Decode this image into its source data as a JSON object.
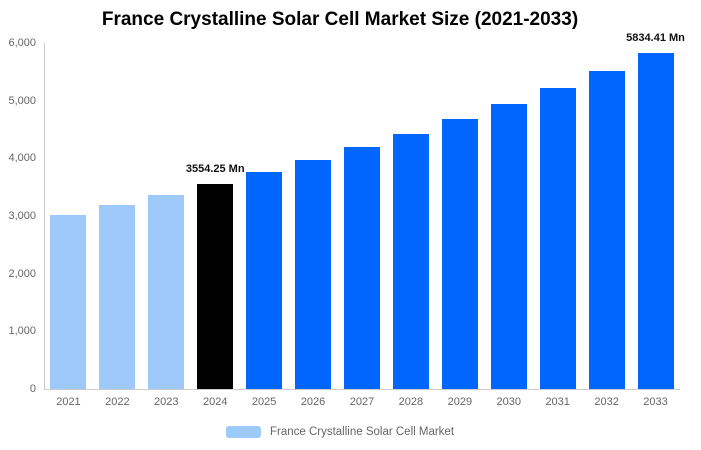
{
  "title": "France Crystalline Solar Cell Market Size (2021-2033)",
  "legend": {
    "label": "France Crystalline Solar Cell Market",
    "swatch_color": "#9ECAFB"
  },
  "colors": {
    "light_blue": "#9ECAFB",
    "highlight_black": "#000000",
    "primary_blue": "#0166FE",
    "axis_line": "#cccccc",
    "tick_text": "#666666",
    "data_label_text": "#111111",
    "title_text": "#000000",
    "background": "#ffffff"
  },
  "chart_data": {
    "type": "bar",
    "title": "France Crystalline Solar Cell Market Size (2021-2033)",
    "unit": "Mn",
    "categories": [
      "2021",
      "2022",
      "2023",
      "2024",
      "2025",
      "2026",
      "2027",
      "2028",
      "2029",
      "2030",
      "2031",
      "2032",
      "2033"
    ],
    "values": [
      3013,
      3184,
      3364,
      3554.25,
      3755,
      3968,
      4193,
      4430,
      4681,
      4946,
      5226,
      5522,
      5834.41
    ],
    "point_color_keys": [
      "light_blue",
      "light_blue",
      "light_blue",
      "highlight_black",
      "primary_blue",
      "primary_blue",
      "primary_blue",
      "primary_blue",
      "primary_blue",
      "primary_blue",
      "primary_blue",
      "primary_blue",
      "primary_blue"
    ],
    "annotations": [
      {
        "index": 3,
        "text": "3554.25 Mn"
      },
      {
        "index": 12,
        "text": "5834.41 Mn"
      }
    ],
    "ylim": [
      0,
      6000
    ],
    "yticks": {
      "values": [
        0,
        1000,
        2000,
        3000,
        4000,
        5000,
        6000
      ],
      "labels": [
        "0",
        "1,000",
        "2,000",
        "3,000",
        "4,000",
        "5,000",
        "6,000"
      ]
    },
    "grid": false,
    "legend_position": "bottom",
    "series_name": "France Crystalline Solar Cell Market"
  }
}
